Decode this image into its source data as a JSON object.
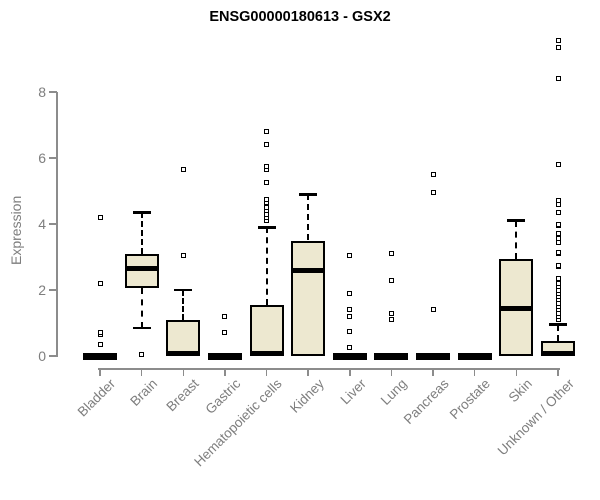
{
  "chart_data": {
    "type": "box",
    "title": "ENSG00000180613 - GSX2",
    "xlabel": "",
    "ylabel": "Expression",
    "yticks": [
      0,
      2,
      4,
      6,
      8
    ],
    "ylim": [
      0,
      9.6
    ],
    "grid": false,
    "legend": "none",
    "categories": [
      "Bladder",
      "Brain",
      "Breast",
      "Gastric",
      "Hematopoietic cells",
      "Kidney",
      "Liver",
      "Lung",
      "Pancreas",
      "Prostate",
      "Skin",
      "Unknown / Other"
    ],
    "series": [
      {
        "name": "Bladder",
        "q1": 0,
        "median": 0,
        "q3": 0,
        "whisker_low": 0,
        "whisker_high": 0,
        "outliers": [
          0.35,
          0.65,
          0.72,
          2.2,
          4.2
        ]
      },
      {
        "name": "Brain",
        "q1": 2.05,
        "median": 2.65,
        "q3": 3.1,
        "whisker_low": 0.85,
        "whisker_high": 4.35,
        "outliers": [
          0.05
        ]
      },
      {
        "name": "Breast",
        "q1": 0,
        "median": 0,
        "q3": 1.1,
        "whisker_low": 0,
        "whisker_high": 2.0,
        "outliers": [
          3.05,
          5.65
        ]
      },
      {
        "name": "Gastric",
        "q1": 0,
        "median": 0,
        "q3": 0,
        "whisker_low": 0,
        "whisker_high": 0,
        "outliers": [
          0.7,
          1.2
        ]
      },
      {
        "name": "Hematopoietic cells",
        "q1": 0,
        "median": 0,
        "q3": 1.55,
        "whisker_low": 0,
        "whisker_high": 3.9,
        "outliers": [
          4.1,
          4.2,
          4.3,
          4.4,
          4.5,
          4.65,
          4.75,
          5.25,
          5.65,
          5.75,
          6.4,
          6.8
        ]
      },
      {
        "name": "Kidney",
        "q1": 0,
        "median": 2.6,
        "q3": 3.5,
        "whisker_low": 0,
        "whisker_high": 4.9,
        "outliers": []
      },
      {
        "name": "Liver",
        "q1": 0,
        "median": 0,
        "q3": 0,
        "whisker_low": 0,
        "whisker_high": 0,
        "outliers": [
          0.25,
          0.75,
          1.2,
          1.4,
          1.9,
          3.05
        ]
      },
      {
        "name": "Lung",
        "q1": 0,
        "median": 0,
        "q3": 0,
        "whisker_low": 0,
        "whisker_high": 0,
        "outliers": [
          1.1,
          1.3,
          2.3,
          3.1
        ]
      },
      {
        "name": "Pancreas",
        "q1": 0,
        "median": 0,
        "q3": 0,
        "whisker_low": 0,
        "whisker_high": 0,
        "outliers": [
          1.4,
          4.95,
          5.5
        ]
      },
      {
        "name": "Prostate",
        "q1": 0,
        "median": 0,
        "q3": 0,
        "whisker_low": 0,
        "whisker_high": 0,
        "outliers": []
      },
      {
        "name": "Skin",
        "q1": 0,
        "median": 1.45,
        "q3": 2.95,
        "whisker_low": 0,
        "whisker_high": 4.1,
        "outliers": []
      },
      {
        "name": "Unknown / Other",
        "q1": 0,
        "median": 0.05,
        "q3": 0.45,
        "whisker_low": 0,
        "whisker_high": 0.95,
        "outliers": [
          1.1,
          1.2,
          1.3,
          1.4,
          1.5,
          1.6,
          1.7,
          1.8,
          1.9,
          2.0,
          2.1,
          2.2,
          2.35,
          2.7,
          2.75,
          3.1,
          3.15,
          3.45,
          3.55,
          3.7,
          3.95,
          4.0,
          4.35,
          4.6,
          4.7,
          5.8,
          8.4,
          9.35,
          9.55
        ]
      }
    ]
  },
  "colors": {
    "background": "#ffffff",
    "box_fill": "#ede8d0",
    "box_border": "#000000",
    "median": "#000000",
    "whisker": "#000000",
    "outlier_border": "#000000",
    "axis": "#8c8c8c",
    "tick_label": "#7e7e7e",
    "title": "#000000"
  }
}
